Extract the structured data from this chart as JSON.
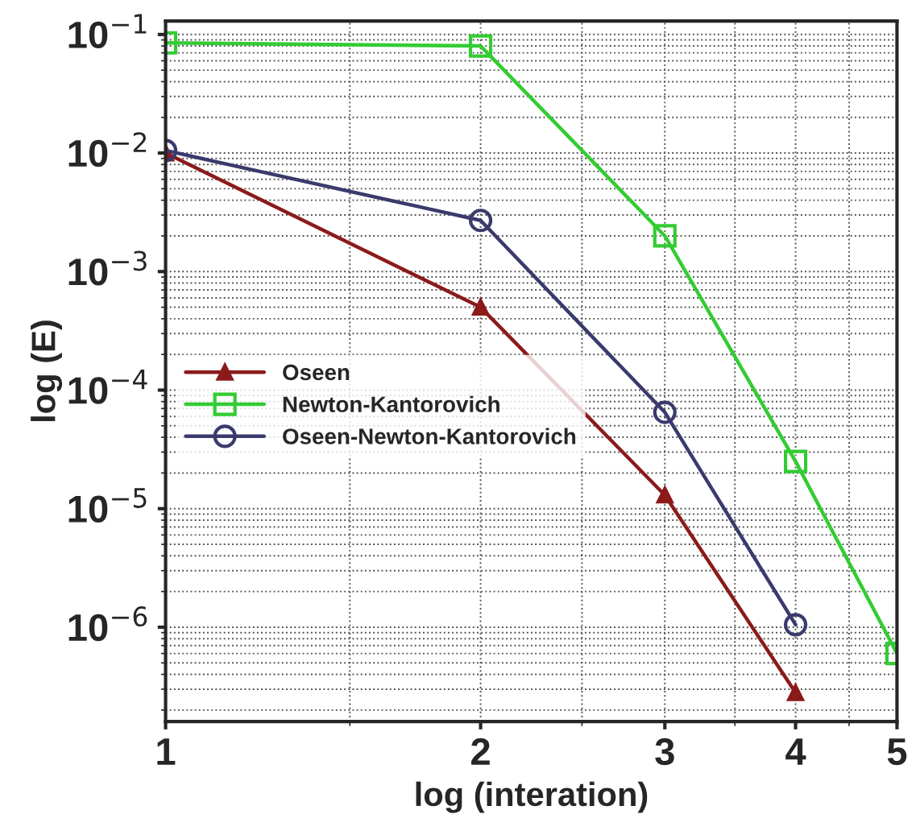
{
  "chart_data": {
    "type": "line",
    "xlabel": "log (interation)",
    "ylabel": "log (E)",
    "log": "xy",
    "xlim": [
      1,
      5
    ],
    "xticks": [
      1,
      2,
      3,
      4,
      5
    ],
    "ylim": [
      1.6e-07,
      0.13
    ],
    "yticks": [
      {
        "value": 0.1,
        "label": "10$^{−1}$"
      },
      {
        "value": 0.01,
        "label": "10$^{−2}$"
      },
      {
        "value": 0.001,
        "label": "10$^{−3}$"
      },
      {
        "value": 0.0001,
        "label": "10$^{−4}$"
      },
      {
        "value": 1e-05,
        "label": "10$^{−5}$"
      },
      {
        "value": 1e-06,
        "label": "10$^{−6}$"
      }
    ],
    "grid": true,
    "legend": "left",
    "series": [
      {
        "name": "Oseen",
        "color": "#8b1a1a",
        "marker": "triangle",
        "x": [
          1,
          2,
          3,
          4
        ],
        "values": [
          0.01,
          0.0005,
          1.3e-05,
          2.8e-07
        ]
      },
      {
        "name": "Newton-Kantorovich",
        "color": "#33cc33",
        "marker": "square",
        "x": [
          1,
          2,
          3,
          4,
          5
        ],
        "values": [
          0.085,
          0.08,
          0.002,
          2.5e-05,
          6e-07
        ]
      },
      {
        "name": "Oseen-Newton-Kantorovich",
        "color": "#3a3a6e",
        "marker": "circle",
        "x": [
          1,
          2,
          3,
          4
        ],
        "values": [
          0.0105,
          0.0027,
          6.5e-05,
          1.05e-06
        ]
      }
    ]
  }
}
